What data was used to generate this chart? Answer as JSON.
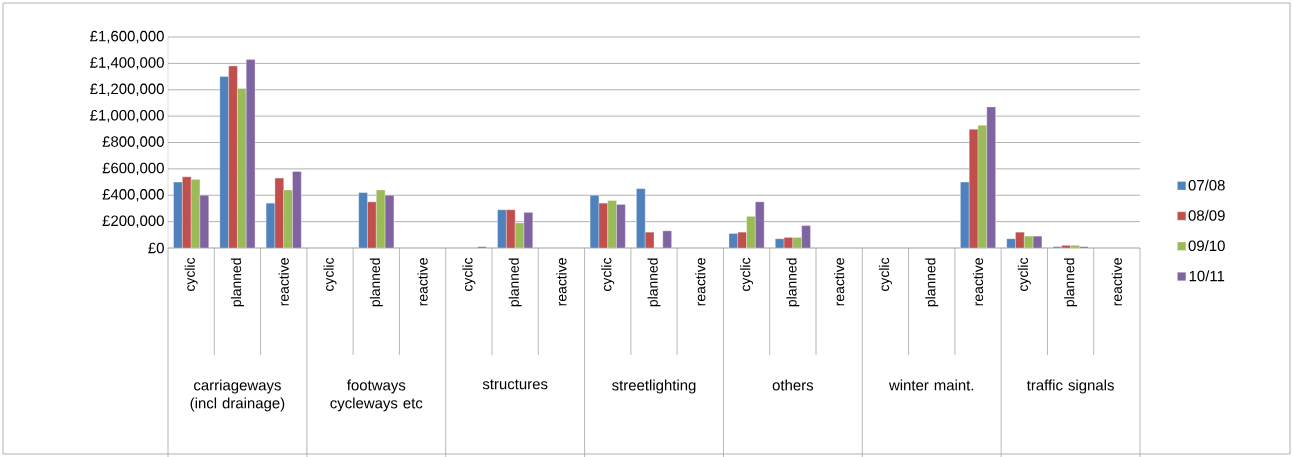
{
  "chart_data": {
    "type": "bar",
    "categories": [
      "cyclic",
      "planned",
      "reactive",
      "cyclic",
      "planned",
      "reactive",
      "cyclic",
      "planned",
      "reactive",
      "cyclic",
      "planned",
      "reactive",
      "cyclic",
      "planned",
      "reactive",
      "cyclic",
      "planned",
      "reactive",
      "cyclic",
      "planned",
      "reactive"
    ],
    "annotations": [
      "carriageways (incl drainage)",
      "footways cycleways etc",
      "structures",
      "streetlighting",
      "others",
      "winter maint.",
      "traffic signals"
    ],
    "series": [
      {
        "name": "07/08",
        "color": "#4f81bd",
        "values": [
          500000,
          1300000,
          340000,
          null,
          420000,
          null,
          null,
          290000,
          null,
          400000,
          450000,
          null,
          110000,
          70000,
          null,
          null,
          null,
          500000,
          70000,
          10000,
          null
        ]
      },
      {
        "name": "08/09",
        "color": "#c0504d",
        "values": [
          540000,
          1380000,
          530000,
          null,
          350000,
          null,
          null,
          290000,
          null,
          340000,
          120000,
          null,
          120000,
          80000,
          null,
          null,
          null,
          900000,
          120000,
          20000,
          null
        ]
      },
      {
        "name": "09/10",
        "color": "#9bbb59",
        "values": [
          520000,
          1210000,
          440000,
          null,
          440000,
          null,
          null,
          190000,
          null,
          360000,
          null,
          null,
          240000,
          80000,
          null,
          null,
          null,
          930000,
          90000,
          20000,
          null
        ]
      },
      {
        "name": "10/11",
        "color": "#8064a2",
        "values": [
          400000,
          1430000,
          580000,
          null,
          400000,
          null,
          10000,
          270000,
          null,
          330000,
          130000,
          null,
          350000,
          170000,
          null,
          null,
          null,
          1070000,
          90000,
          10000,
          null
        ]
      }
    ],
    "ylim": [
      0,
      1600000
    ],
    "yticks": [
      {
        "value": 0,
        "label": "£0"
      },
      {
        "value": 200000,
        "label": "£200,000"
      },
      {
        "value": 400000,
        "label": "£400,000"
      },
      {
        "value": 600000,
        "label": "£600,000"
      },
      {
        "value": 800000,
        "label": "£800,000"
      },
      {
        "value": 1000000,
        "label": "£1,000,000"
      },
      {
        "value": 1200000,
        "label": "£1,200,000"
      },
      {
        "value": 1400000,
        "label": "£1,400,000"
      },
      {
        "value": 1600000,
        "label": "£1,600,000"
      }
    ],
    "grid": "y",
    "legend": "right"
  }
}
